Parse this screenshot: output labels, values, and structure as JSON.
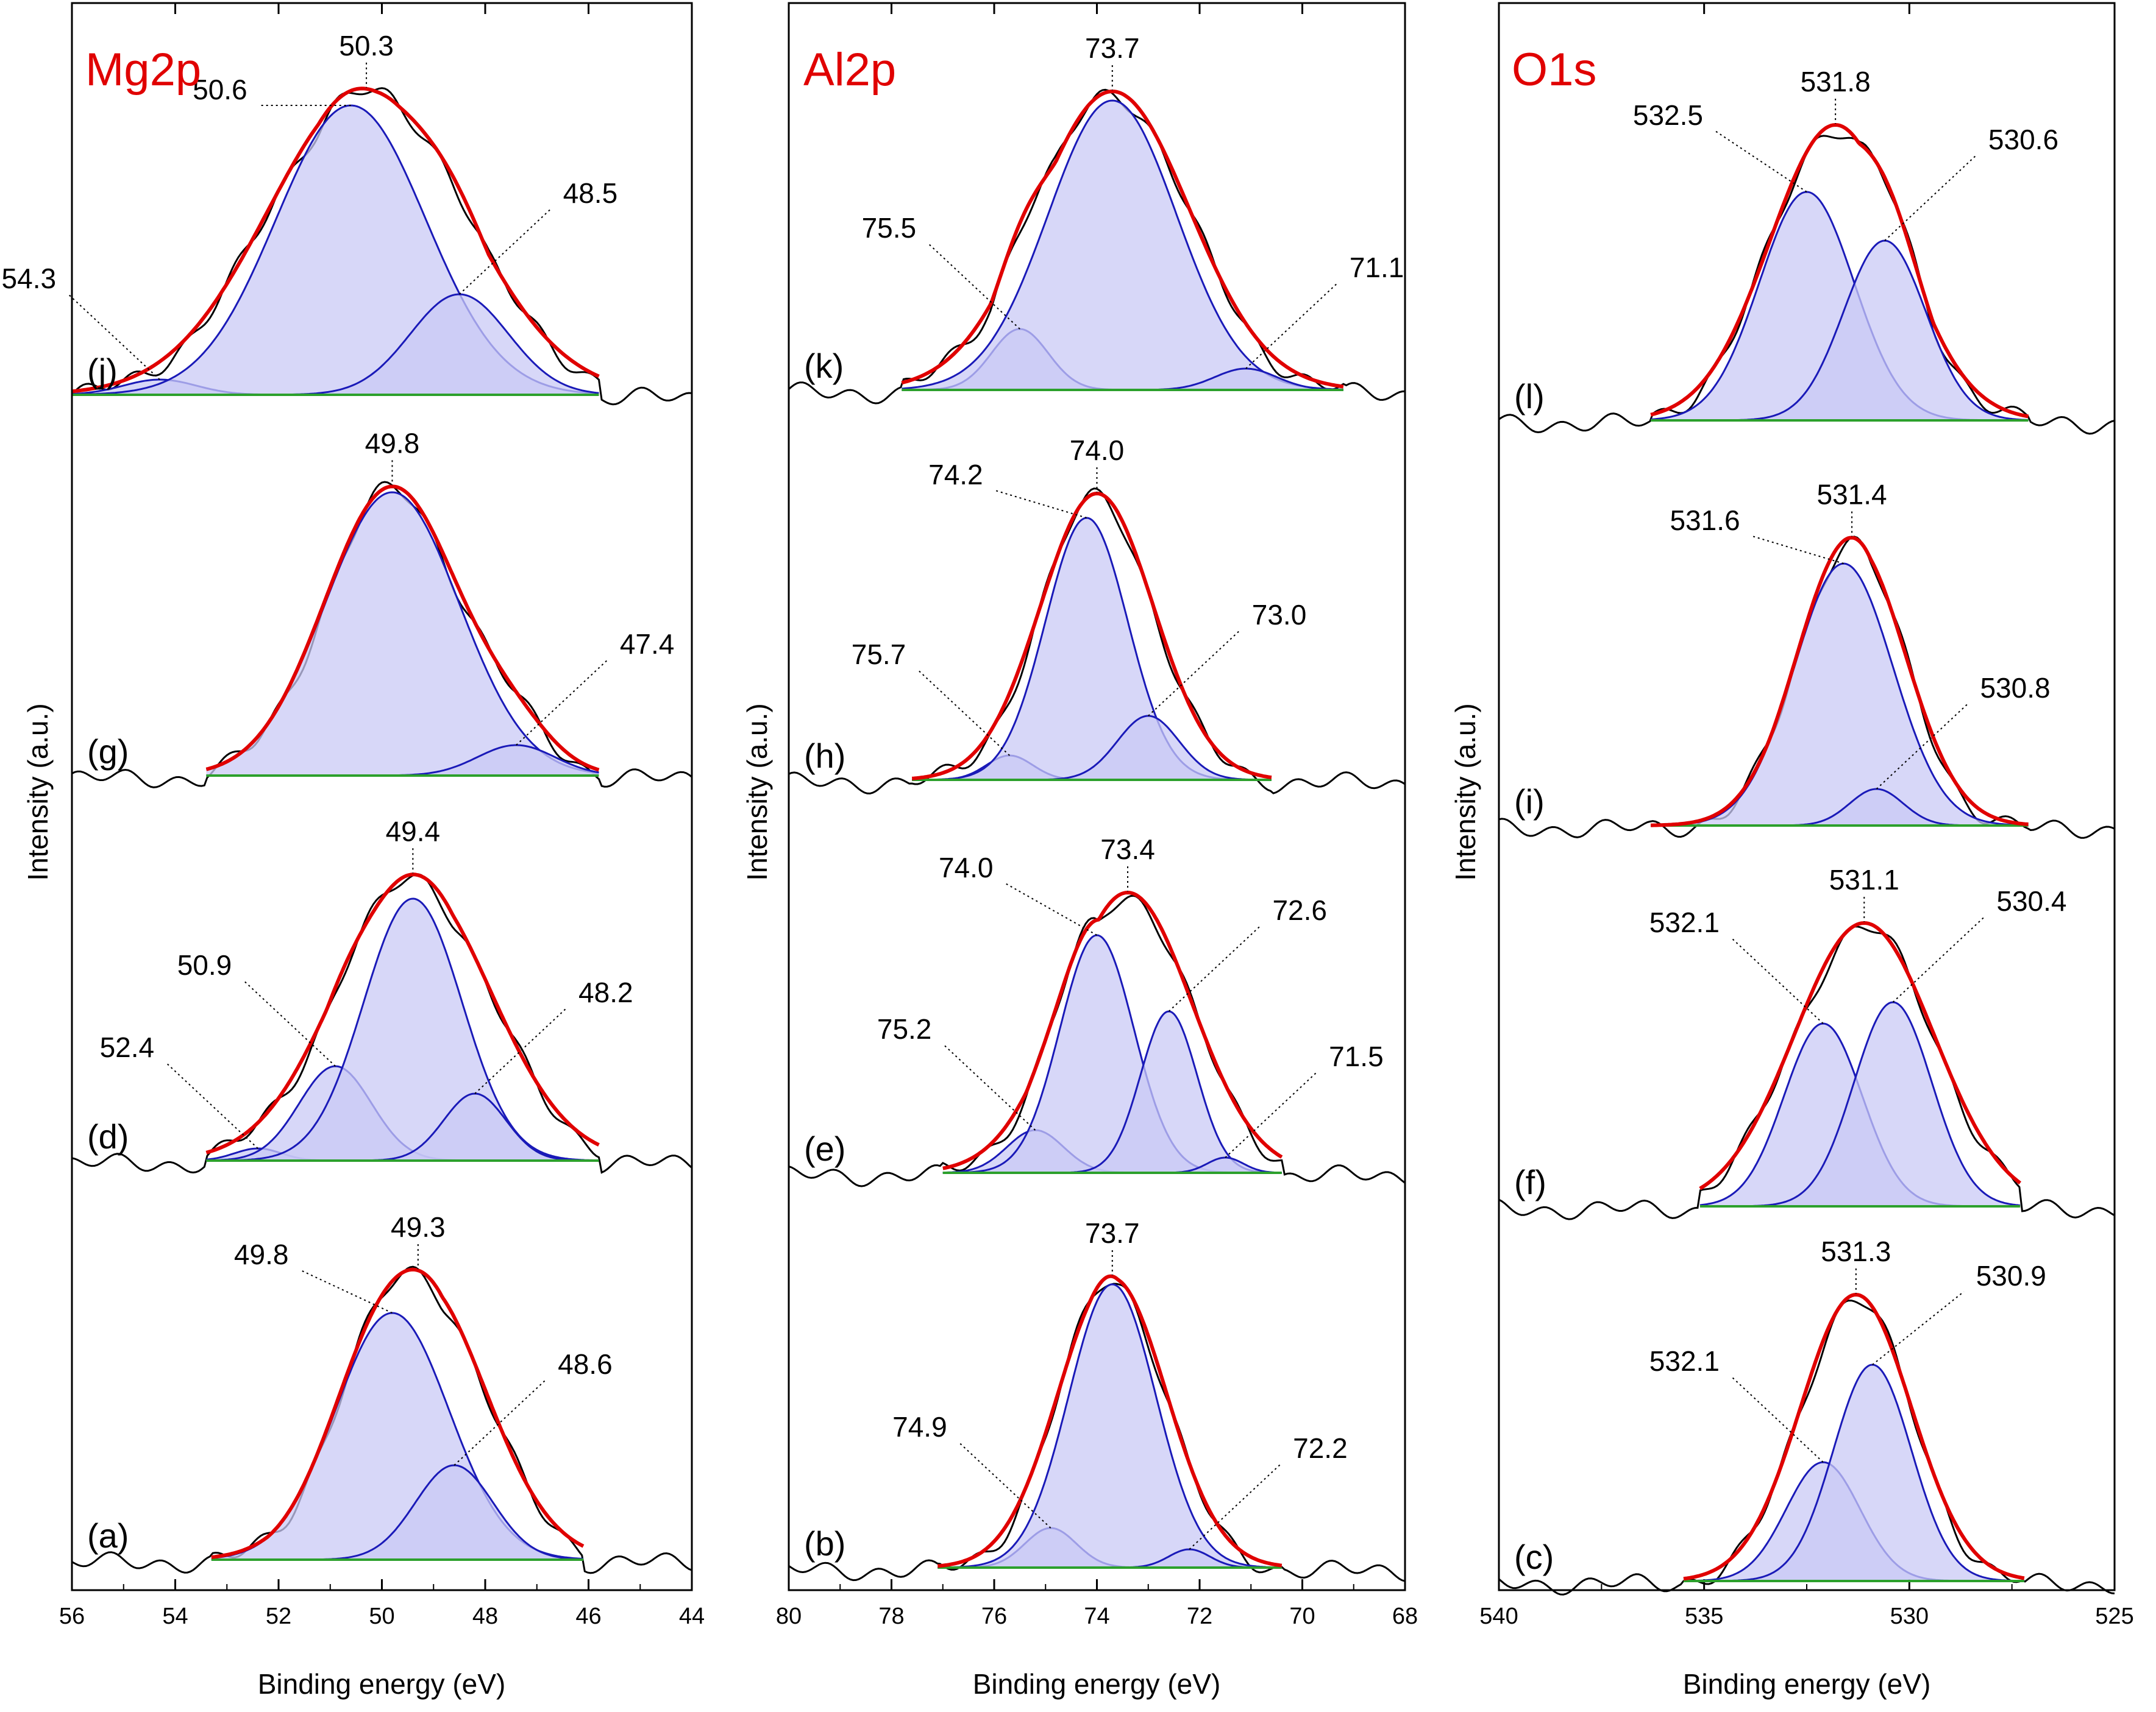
{
  "figure": {
    "y_axis_label": "Intensity (a.u.)",
    "x_axis_label": "Binding energy (eV)"
  },
  "colors": {
    "envelope": "#e00000",
    "component": "#1a1ab8",
    "component_fill": "#c9c9f5",
    "baseline": "#2ca02c",
    "raw": "#000000",
    "title": "#e00000"
  },
  "chart_data": [
    {
      "type": "line",
      "title": "Mg2p",
      "xlabel": "Binding energy (eV)",
      "ylabel": "Intensity (a.u.)",
      "xlim": [
        56,
        44
      ],
      "x_ticks": [
        "56",
        "54",
        "52",
        "50",
        "48",
        "46",
        "44"
      ],
      "x_tick_values": [
        56,
        54,
        52,
        50,
        48,
        46,
        44
      ],
      "spectra": [
        {
          "label": "(j)",
          "fit_range": [
            56,
            45.8
          ],
          "envelope": {
            "peak": 50.3,
            "height": 1.0,
            "width": 1.9
          },
          "components": [
            {
              "center": 54.3,
              "height": 0.05,
              "width": 0.7
            },
            {
              "center": 50.6,
              "height": 0.95,
              "width": 1.45
            },
            {
              "center": 48.5,
              "height": 0.33,
              "width": 0.95
            }
          ],
          "annotations": [
            {
              "text": "50.3",
              "x": 50.3,
              "level": 1.0
            },
            {
              "text": "50.6",
              "x": 50.6,
              "level": 0.95
            },
            {
              "text": "54.3",
              "x": 54.3,
              "level": 0.05
            },
            {
              "text": "48.5",
              "x": 48.5,
              "level": 0.33
            }
          ]
        },
        {
          "label": "(g)",
          "fit_range": [
            53.4,
            45.8
          ],
          "envelope": {
            "peak": 49.8,
            "height": 0.94,
            "width": 1.3
          },
          "components": [
            {
              "center": 49.8,
              "height": 0.93,
              "width": 1.3
            },
            {
              "center": 47.4,
              "height": 0.1,
              "width": 0.75
            }
          ],
          "annotations": [
            {
              "text": "49.8",
              "x": 49.8,
              "level": 0.94
            },
            {
              "text": "47.4",
              "x": 47.4,
              "level": 0.1
            }
          ]
        },
        {
          "label": "(d)",
          "fit_range": [
            53.4,
            45.8
          ],
          "envelope": {
            "peak": 49.4,
            "height": 0.92,
            "width": 1.5
          },
          "components": [
            {
              "center": 52.4,
              "height": 0.04,
              "width": 0.45
            },
            {
              "center": 50.9,
              "height": 0.31,
              "width": 0.7
            },
            {
              "center": 49.4,
              "height": 0.86,
              "width": 0.95
            },
            {
              "center": 48.2,
              "height": 0.22,
              "width": 0.6
            }
          ],
          "annotations": [
            {
              "text": "49.4",
              "x": 49.4,
              "level": 0.92
            },
            {
              "text": "50.9",
              "x": 50.9,
              "level": 0.31
            },
            {
              "text": "52.4",
              "x": 52.4,
              "level": 0.04
            },
            {
              "text": "48.2",
              "x": 48.2,
              "level": 0.22
            }
          ]
        },
        {
          "label": "(a)",
          "fit_range": [
            53.3,
            46.1
          ],
          "envelope": {
            "peak": 49.3,
            "height": 0.92,
            "width": 1.3
          },
          "components": [
            {
              "center": 49.8,
              "height": 0.81,
              "width": 1.1
            },
            {
              "center": 48.6,
              "height": 0.31,
              "width": 0.75
            }
          ],
          "annotations": [
            {
              "text": "49.3",
              "x": 49.3,
              "level": 0.92
            },
            {
              "text": "49.8",
              "x": 49.8,
              "level": 0.81
            },
            {
              "text": "48.6",
              "x": 48.6,
              "level": 0.31
            }
          ]
        }
      ]
    },
    {
      "type": "line",
      "title": "Al2p",
      "xlabel": "Binding energy (eV)",
      "ylabel": "Intensity (a.u.)",
      "xlim": [
        80,
        68
      ],
      "x_ticks": [
        "80",
        "78",
        "76",
        "74",
        "72",
        "70",
        "68"
      ],
      "x_tick_values": [
        80,
        78,
        76,
        74,
        72,
        70,
        68
      ],
      "spectra": [
        {
          "label": "(k)",
          "fit_range": [
            77.8,
            69.2
          ],
          "envelope": {
            "peak": 73.7,
            "height": 0.98,
            "width": 1.5
          },
          "components": [
            {
              "center": 75.5,
              "height": 0.2,
              "width": 0.55
            },
            {
              "center": 73.7,
              "height": 0.95,
              "width": 1.25
            },
            {
              "center": 71.1,
              "height": 0.07,
              "width": 0.6
            }
          ],
          "annotations": [
            {
              "text": "73.7",
              "x": 73.7,
              "level": 0.98
            },
            {
              "text": "75.5",
              "x": 75.5,
              "level": 0.2
            },
            {
              "text": "71.1",
              "x": 71.1,
              "level": 0.07
            }
          ]
        },
        {
          "label": "(h)",
          "fit_range": [
            77.6,
            70.6
          ],
          "envelope": {
            "peak": 74.0,
            "height": 0.94,
            "width": 1.1
          },
          "components": [
            {
              "center": 75.7,
              "height": 0.08,
              "width": 0.45
            },
            {
              "center": 74.2,
              "height": 0.86,
              "width": 0.8
            },
            {
              "center": 73.0,
              "height": 0.21,
              "width": 0.6
            }
          ],
          "annotations": [
            {
              "text": "74.0",
              "x": 74.0,
              "level": 0.94
            },
            {
              "text": "74.2",
              "x": 74.2,
              "level": 0.86
            },
            {
              "text": "75.7",
              "x": 75.7,
              "level": 0.08
            },
            {
              "text": "73.0",
              "x": 73.0,
              "level": 0.21
            }
          ]
        },
        {
          "label": "(e)",
          "fit_range": [
            77.0,
            70.4
          ],
          "envelope": {
            "peak": 73.4,
            "height": 0.92,
            "width": 1.25
          },
          "components": [
            {
              "center": 75.2,
              "height": 0.14,
              "width": 0.55
            },
            {
              "center": 74.0,
              "height": 0.78,
              "width": 0.72
            },
            {
              "center": 72.6,
              "height": 0.53,
              "width": 0.55
            },
            {
              "center": 71.5,
              "height": 0.05,
              "width": 0.35
            }
          ],
          "annotations": [
            {
              "text": "73.4",
              "x": 73.4,
              "level": 0.92
            },
            {
              "text": "74.0",
              "x": 74.0,
              "level": 0.78
            },
            {
              "text": "75.2",
              "x": 75.2,
              "level": 0.14
            },
            {
              "text": "72.6",
              "x": 72.6,
              "level": 0.53
            },
            {
              "text": "71.5",
              "x": 71.5,
              "level": 0.05
            }
          ]
        },
        {
          "label": "(b)",
          "fit_range": [
            77.1,
            70.4
          ],
          "envelope": {
            "peak": 73.7,
            "height": 0.95,
            "width": 1.05
          },
          "components": [
            {
              "center": 74.9,
              "height": 0.13,
              "width": 0.5
            },
            {
              "center": 73.7,
              "height": 0.93,
              "width": 0.85
            },
            {
              "center": 72.2,
              "height": 0.06,
              "width": 0.4
            }
          ],
          "annotations": [
            {
              "text": "73.7",
              "x": 73.7,
              "level": 0.95
            },
            {
              "text": "74.9",
              "x": 74.9,
              "level": 0.13
            },
            {
              "text": "72.2",
              "x": 72.2,
              "level": 0.06
            }
          ]
        }
      ]
    },
    {
      "type": "line",
      "title": "O1s",
      "xlabel": "Binding energy (eV)",
      "ylabel": "Intensity (a.u.)",
      "xlim": [
        540,
        525
      ],
      "x_ticks": [
        "540",
        "535",
        "530",
        "525"
      ],
      "x_tick_values": [
        540,
        535,
        530,
        525
      ],
      "spectra": [
        {
          "label": "(l)",
          "fit_range": [
            536.3,
            527.1
          ],
          "envelope": {
            "peak": 531.8,
            "height": 0.97,
            "width": 1.6
          },
          "components": [
            {
              "center": 532.5,
              "height": 0.75,
              "width": 1.15
            },
            {
              "center": 530.6,
              "height": 0.59,
              "width": 1.0
            }
          ],
          "annotations": [
            {
              "text": "531.8",
              "x": 531.8,
              "level": 0.97
            },
            {
              "text": "532.5",
              "x": 532.5,
              "level": 0.75
            },
            {
              "text": "530.6",
              "x": 530.6,
              "level": 0.59
            }
          ]
        },
        {
          "label": "(i)",
          "fit_range": [
            536.3,
            527.1
          ],
          "envelope": {
            "peak": 531.4,
            "height": 0.93,
            "width": 1.3
          },
          "components": [
            {
              "center": 531.6,
              "height": 0.86,
              "width": 1.2
            },
            {
              "center": 530.8,
              "height": 0.12,
              "width": 0.65
            }
          ],
          "annotations": [
            {
              "text": "531.4",
              "x": 531.4,
              "level": 0.93
            },
            {
              "text": "531.6",
              "x": 531.6,
              "level": 0.86
            },
            {
              "text": "530.8",
              "x": 530.8,
              "level": 0.12
            }
          ]
        },
        {
          "label": "(f)",
          "fit_range": [
            535.1,
            527.3
          ],
          "envelope": {
            "peak": 531.1,
            "height": 0.93,
            "width": 1.7
          },
          "components": [
            {
              "center": 532.1,
              "height": 0.6,
              "width": 0.95
            },
            {
              "center": 530.4,
              "height": 0.67,
              "width": 0.95
            }
          ],
          "annotations": [
            {
              "text": "531.1",
              "x": 531.1,
              "level": 0.93
            },
            {
              "text": "532.1",
              "x": 532.1,
              "level": 0.6
            },
            {
              "text": "530.4",
              "x": 530.4,
              "level": 0.67
            }
          ]
        },
        {
          "label": "(c)",
          "fit_range": [
            535.5,
            527.2
          ],
          "envelope": {
            "peak": 531.3,
            "height": 0.94,
            "width": 1.35
          },
          "components": [
            {
              "center": 532.1,
              "height": 0.39,
              "width": 0.9
            },
            {
              "center": 530.9,
              "height": 0.71,
              "width": 0.95
            }
          ],
          "annotations": [
            {
              "text": "531.3",
              "x": 531.3,
              "level": 0.94
            },
            {
              "text": "532.1",
              "x": 532.1,
              "level": 0.39
            },
            {
              "text": "530.9",
              "x": 530.9,
              "level": 0.71
            }
          ]
        }
      ]
    }
  ]
}
